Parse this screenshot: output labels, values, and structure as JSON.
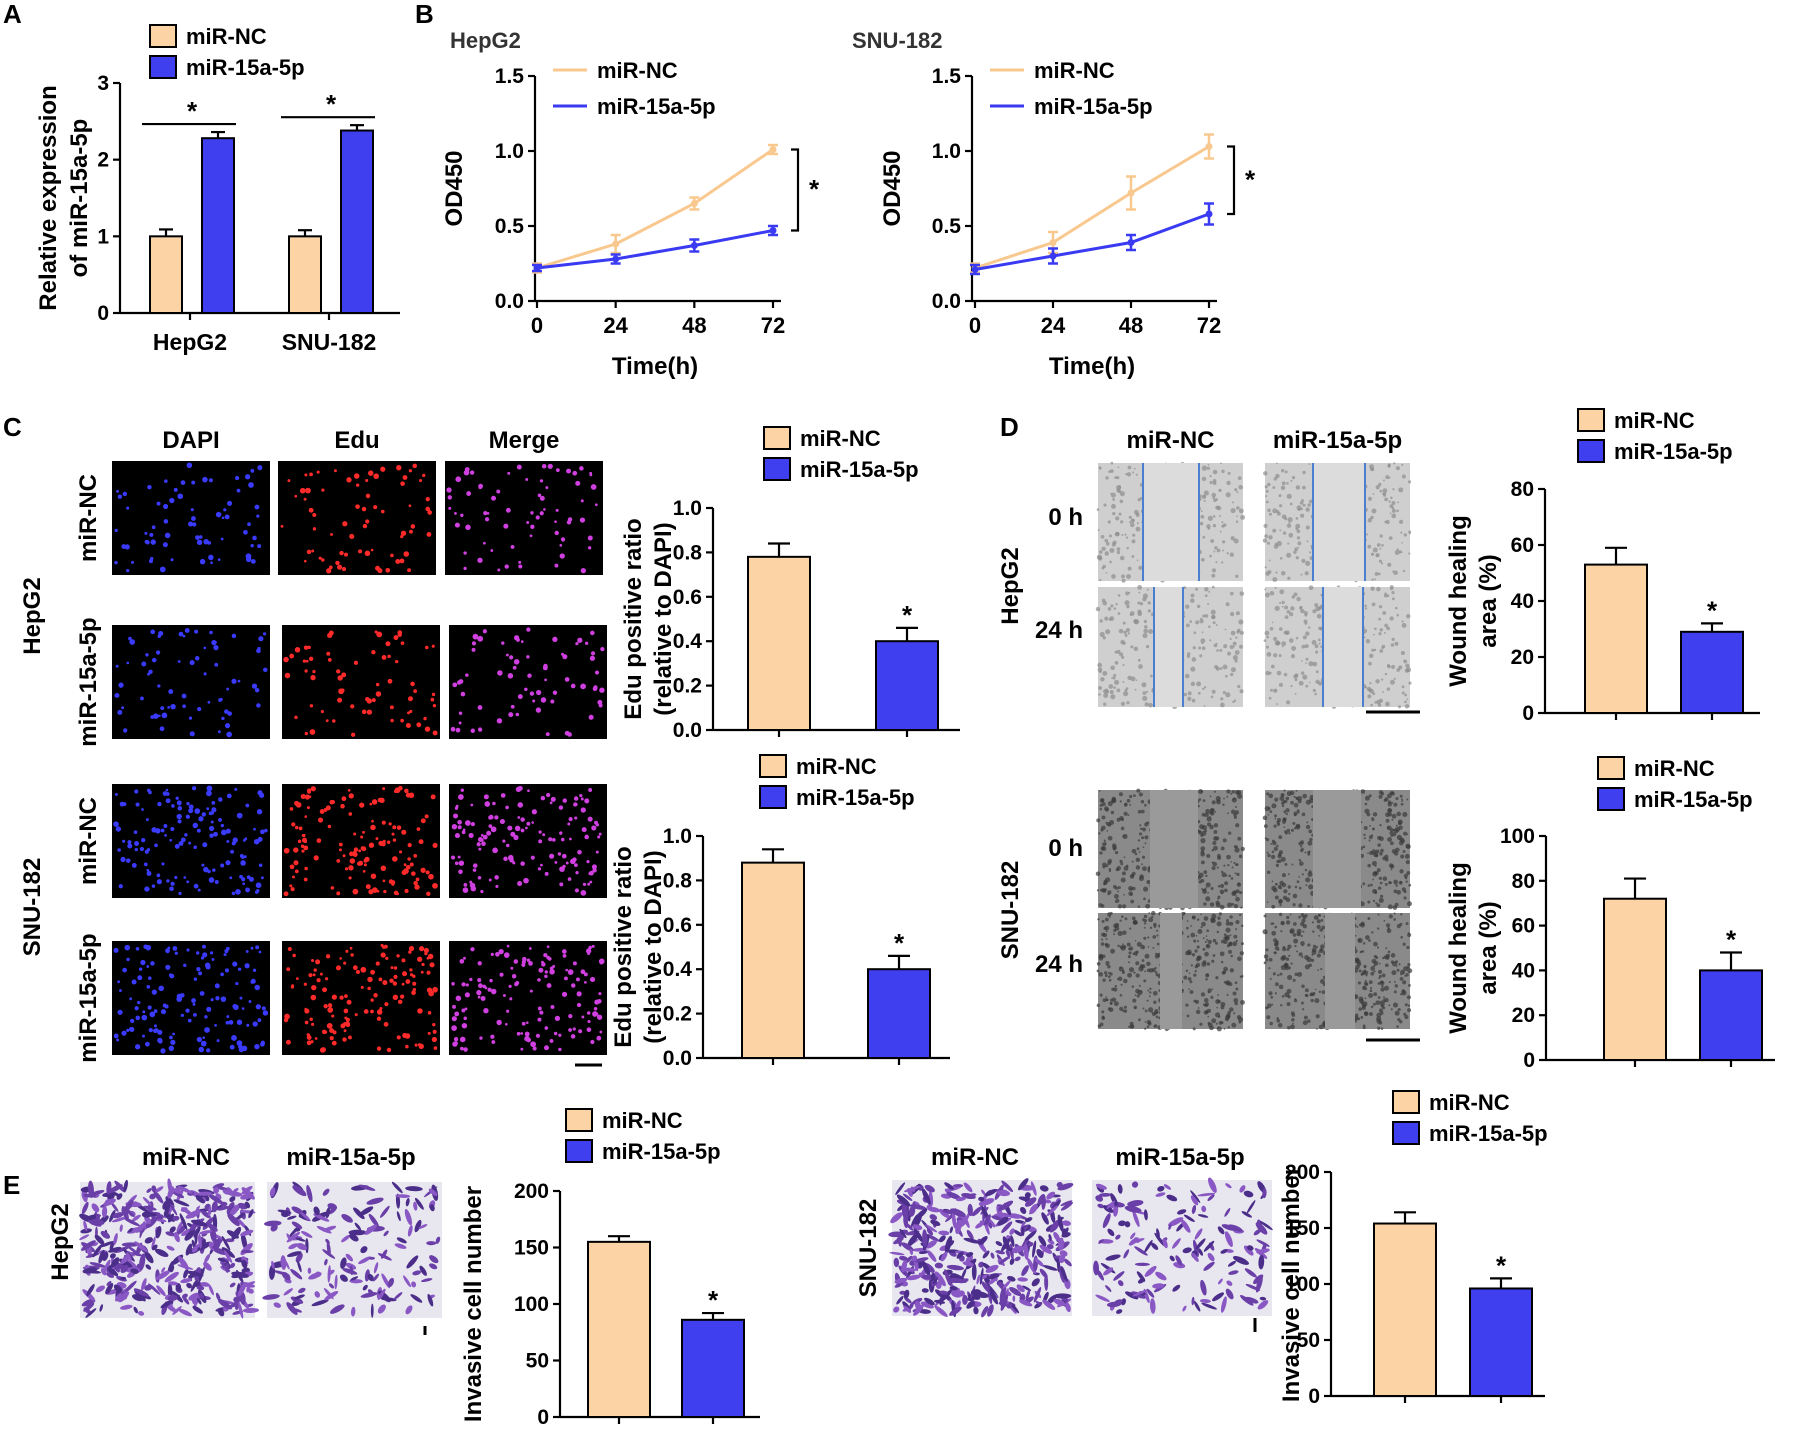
{
  "colors": {
    "nc": "#FBD3A4",
    "mir": "#3F3FF0",
    "line_nc": "#F8C88E",
    "line_mir": "#3A3AF2",
    "axis": "#000000"
  },
  "labels": {
    "series_nc": "miR-NC",
    "series_mir": "miR-15a-5p",
    "sig": "*"
  },
  "panel_letters": [
    "A",
    "B",
    "C",
    "D",
    "E"
  ],
  "panel_c": {
    "col_headers": [
      "DAPI",
      "Edu",
      "Merge"
    ],
    "cell_lines": [
      "HepG2",
      "SNU-182"
    ],
    "row_labels": [
      "miR-NC",
      "miR-15a-5p",
      "miR-NC",
      "miR-15a-5p"
    ]
  },
  "panel_d": {
    "col_headers": [
      "miR-NC",
      "miR-15a-5p"
    ],
    "cell_lines": [
      "HepG2",
      "SNU-182"
    ],
    "time_labels": [
      "0 h",
      "24 h",
      "0 h",
      "24 h"
    ]
  },
  "panel_e": {
    "col_headers": [
      "miR-NC",
      "miR-15a-5p"
    ],
    "cell_lines": [
      "HepG2",
      "SNU-182"
    ]
  },
  "chart_data": [
    {
      "id": "A",
      "type": "bar",
      "categories": [
        "HepG2",
        "SNU-182"
      ],
      "series": [
        {
          "name": "miR-NC",
          "values": [
            1.0,
            1.0
          ],
          "errors": [
            0.09,
            0.08
          ]
        },
        {
          "name": "miR-15a-5p",
          "values": [
            2.28,
            2.38
          ],
          "errors": [
            0.08,
            0.07
          ]
        }
      ],
      "xlabel": "",
      "ylabel": [
        "Relative expression",
        "of miR-15a-5p"
      ],
      "ylim": [
        0,
        3
      ],
      "yticks": [
        0,
        1,
        2,
        3
      ],
      "legend": "top-left",
      "annotations": [
        "*",
        "*"
      ]
    },
    {
      "id": "B1",
      "type": "line",
      "title": "HepG2",
      "x": [
        0,
        24,
        48,
        72
      ],
      "series": [
        {
          "name": "miR-NC",
          "values": [
            0.22,
            0.38,
            0.65,
            1.01
          ],
          "errors": [
            0.03,
            0.06,
            0.04,
            0.03
          ]
        },
        {
          "name": "miR-15a-5p",
          "values": [
            0.22,
            0.28,
            0.37,
            0.47
          ],
          "errors": [
            0.02,
            0.03,
            0.04,
            0.03
          ]
        }
      ],
      "xlabel": "Time(h)",
      "ylabel": "OD450",
      "xticks": [
        0,
        24,
        48,
        72
      ],
      "ylim": [
        0,
        1.5
      ],
      "yticks": [
        "0.0",
        "0.5",
        "1.0",
        "1.5"
      ],
      "legend": "top",
      "annotations": [
        "*"
      ]
    },
    {
      "id": "B2",
      "type": "line",
      "title": "SNU-182",
      "x": [
        0,
        24,
        48,
        72
      ],
      "series": [
        {
          "name": "miR-NC",
          "values": [
            0.22,
            0.39,
            0.72,
            1.03
          ],
          "errors": [
            0.03,
            0.07,
            0.11,
            0.08
          ]
        },
        {
          "name": "miR-15a-5p",
          "values": [
            0.21,
            0.3,
            0.39,
            0.58
          ],
          "errors": [
            0.03,
            0.05,
            0.05,
            0.07
          ]
        }
      ],
      "xlabel": "Time(h)",
      "ylabel": "OD450",
      "xticks": [
        0,
        24,
        48,
        72
      ],
      "ylim": [
        0,
        1.5
      ],
      "yticks": [
        "0.0",
        "0.5",
        "1.0",
        "1.5"
      ],
      "legend": "top",
      "annotations": [
        "*"
      ]
    },
    {
      "id": "C1",
      "type": "bar",
      "categories": [
        "miR-NC",
        "miR-15a-5p"
      ],
      "values": [
        0.78,
        0.4
      ],
      "errors": [
        0.06,
        0.06
      ],
      "ylabel": [
        "Edu positive  ratio",
        "(relative to DAPI)"
      ],
      "ylim": [
        0,
        1.0
      ],
      "yticks": [
        "0.0",
        "0.2",
        "0.4",
        "0.6",
        "0.8",
        "1.0"
      ],
      "legend": "top",
      "annotations": [
        "*"
      ]
    },
    {
      "id": "C2",
      "type": "bar",
      "categories": [
        "miR-NC",
        "miR-15a-5p"
      ],
      "values": [
        0.88,
        0.4
      ],
      "errors": [
        0.06,
        0.06
      ],
      "ylabel": [
        "Edu positive  ratio",
        "(relative to DAPI)"
      ],
      "ylim": [
        0,
        1.0
      ],
      "yticks": [
        "0.0",
        "0.2",
        "0.4",
        "0.6",
        "0.8",
        "1.0"
      ],
      "legend": "top",
      "annotations": [
        "*"
      ]
    },
    {
      "id": "D1",
      "type": "bar",
      "categories": [
        "miR-NC",
        "miR-15a-5p"
      ],
      "values": [
        53,
        29
      ],
      "errors": [
        6,
        3
      ],
      "ylabel": [
        "Wound healing",
        "area (%)"
      ],
      "ylim": [
        0,
        80
      ],
      "yticks": [
        "0",
        "20",
        "40",
        "60",
        "80"
      ],
      "legend": "top",
      "annotations": [
        "*"
      ]
    },
    {
      "id": "D2",
      "type": "bar",
      "categories": [
        "miR-NC",
        "miR-15a-5p"
      ],
      "values": [
        72,
        40
      ],
      "errors": [
        9,
        8
      ],
      "ylabel": [
        "Wound healing",
        "area (%)"
      ],
      "ylim": [
        0,
        100
      ],
      "yticks": [
        "0",
        "20",
        "40",
        "60",
        "80",
        "100"
      ],
      "legend": "top",
      "annotations": [
        "*"
      ]
    },
    {
      "id": "E1",
      "type": "bar",
      "categories": [
        "miR-NC",
        "miR-15a-5p"
      ],
      "values": [
        155,
        86
      ],
      "errors": [
        5,
        6
      ],
      "ylabel": [
        "Invasive cell number"
      ],
      "ylim": [
        0,
        200
      ],
      "yticks": [
        "0",
        "50",
        "100",
        "150",
        "200"
      ],
      "legend": "top",
      "annotations": [
        "*"
      ]
    },
    {
      "id": "E2",
      "type": "bar",
      "categories": [
        "miR-NC",
        "miR-15a-5p"
      ],
      "values": [
        154,
        96
      ],
      "errors": [
        10,
        9
      ],
      "ylabel": [
        "Invasive cell number"
      ],
      "ylim": [
        0,
        200
      ],
      "yticks": [
        "0",
        "50",
        "100",
        "150",
        "200"
      ],
      "legend": "top",
      "annotations": [
        "*"
      ]
    }
  ]
}
